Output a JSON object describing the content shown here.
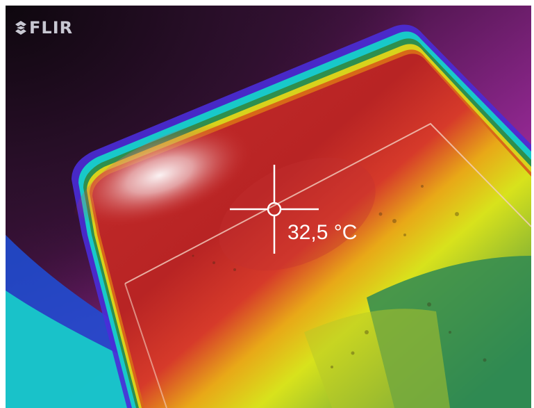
{
  "brand": {
    "name": "FLIR",
    "logo_icon": "flir-logo-icon"
  },
  "spot_meter": {
    "icon": "crosshair-icon",
    "reading": "32,5 °C"
  },
  "palette": {
    "cold": "#1a0d1a",
    "purple": "#8a1c8a",
    "magenta": "#d22cd2",
    "blue": "#1e4fd8",
    "cyan": "#18c9c9",
    "green": "#2f8a4a",
    "yellow": "#d7e01a",
    "orange": "#e07a18",
    "red": "#c62626",
    "white": "#f5e9ea"
  }
}
